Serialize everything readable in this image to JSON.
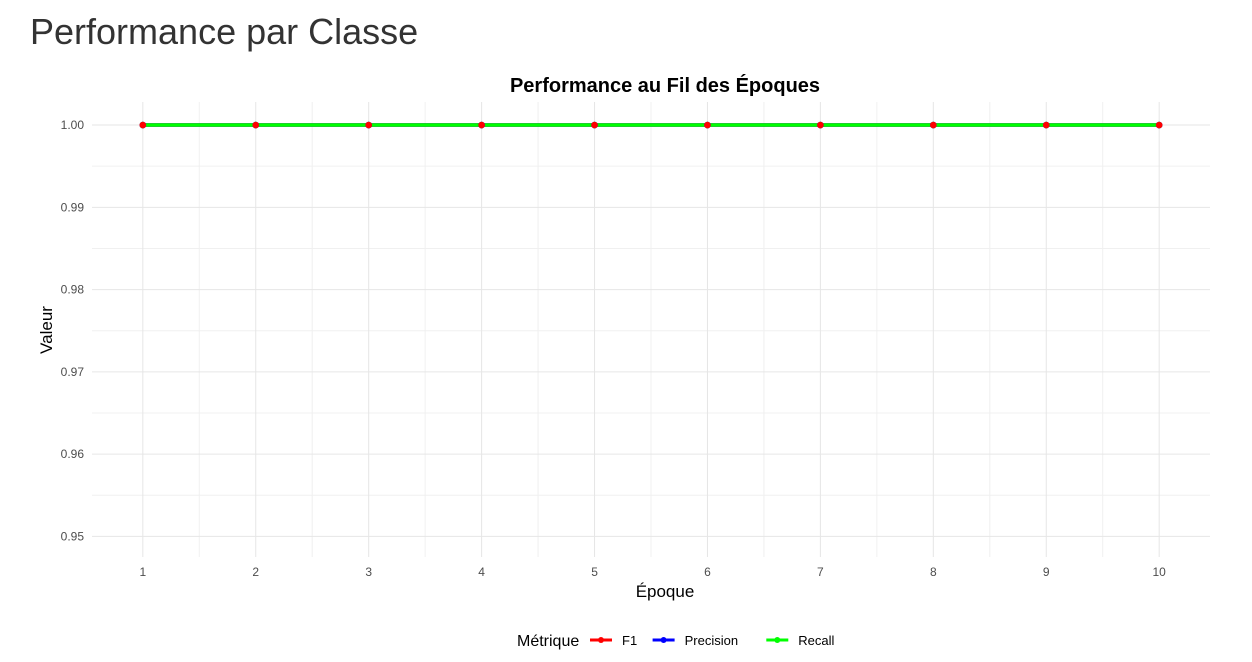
{
  "page": {
    "title": "Performance par Classe"
  },
  "chart_data": {
    "type": "line",
    "title": "Performance au Fil des Époques",
    "xlabel": "Époque",
    "ylabel": "Valeur",
    "x": [
      1,
      2,
      3,
      4,
      5,
      6,
      7,
      8,
      9,
      10
    ],
    "x_ticks": [
      "1",
      "2",
      "3",
      "4",
      "5",
      "6",
      "7",
      "8",
      "9",
      "10"
    ],
    "y_ticks": [
      "0.95",
      "0.96",
      "0.97",
      "0.98",
      "0.99",
      "1.00"
    ],
    "ylim": [
      0.9475,
      1.0028
    ],
    "xlim": [
      0.55,
      10.45
    ],
    "grid": true,
    "legend": {
      "title": "Métrique",
      "position": "bottom"
    },
    "series": [
      {
        "name": "F1",
        "color": "#ff0000",
        "values": [
          1,
          1,
          1,
          1,
          1,
          1,
          1,
          1,
          1,
          1
        ]
      },
      {
        "name": "Precision",
        "color": "#0000ff",
        "values": [
          1,
          1,
          1,
          1,
          1,
          1,
          1,
          1,
          1,
          1
        ]
      },
      {
        "name": "Recall",
        "color": "#00ff00",
        "values": [
          1,
          1,
          1,
          1,
          1,
          1,
          1,
          1,
          1,
          1
        ]
      }
    ]
  }
}
